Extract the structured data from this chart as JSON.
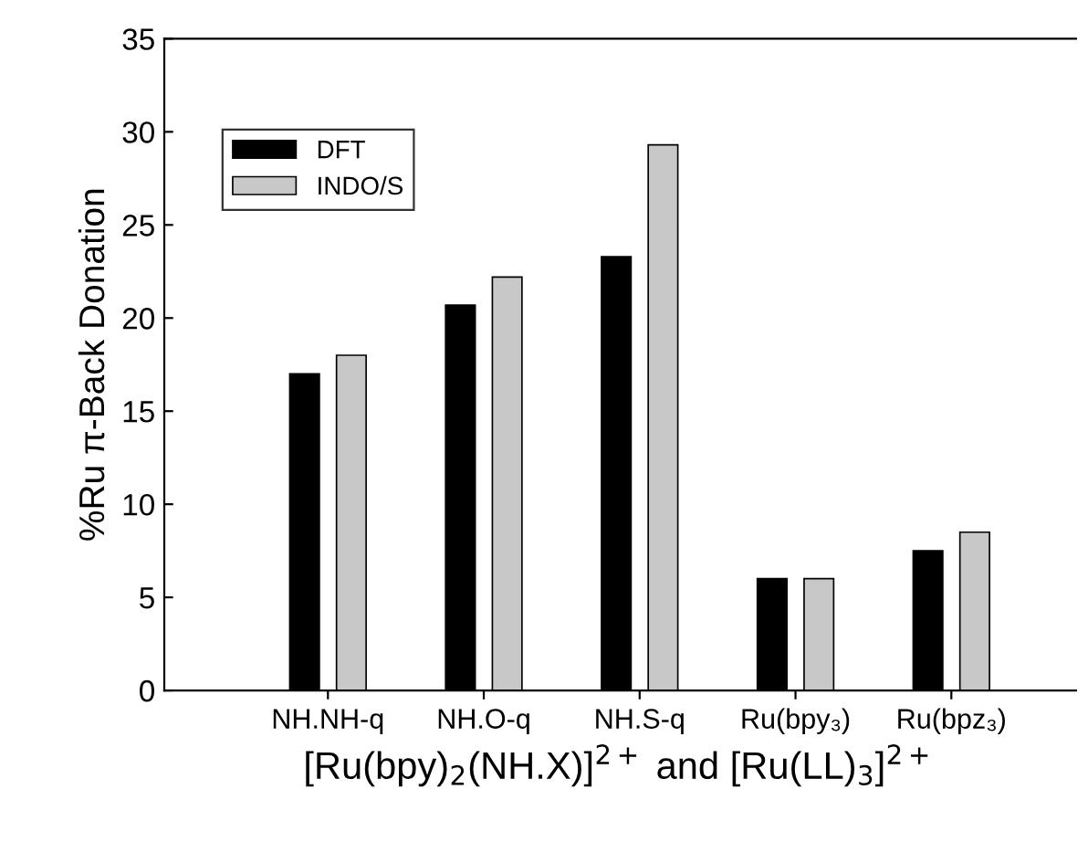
{
  "chart_data": {
    "type": "bar",
    "xlabel": "[Ru(bpy)$_{2}$(NH.X)]$^{2+}$ and [Ru(LL)$_{3}$]$^{2+}$",
    "ylabel": "%Ru π-Back Donation",
    "categories": [
      "NH.NH-q",
      "NH.O-q",
      "NH.S-q",
      "Ru(bpy₃)",
      "Ru(bpz₃)"
    ],
    "series": [
      {
        "name": "DFT",
        "color": "#000000",
        "values": [
          17.0,
          20.7,
          23.3,
          6.0,
          7.5
        ]
      },
      {
        "name": "INDO/S",
        "color": "#c8c8c8",
        "values": [
          18.0,
          22.2,
          29.3,
          6.0,
          8.5
        ]
      }
    ],
    "ylim": [
      0,
      35
    ],
    "yticks": [
      0,
      5,
      10,
      15,
      20,
      25,
      30,
      35
    ],
    "grid": false,
    "legend": "top left"
  }
}
